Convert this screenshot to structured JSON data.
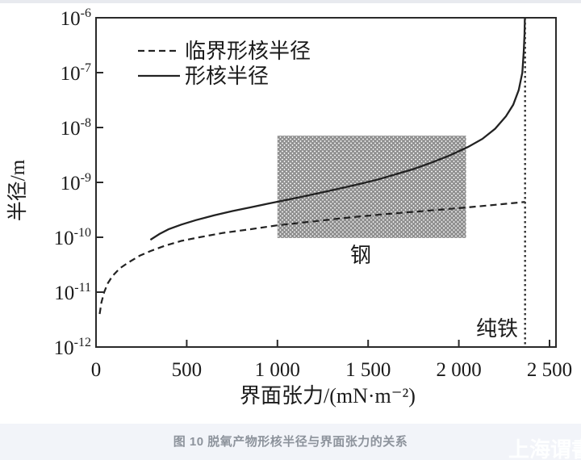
{
  "page": {
    "watermark": "上海谓書",
    "top_edge_color": "#e8eaef",
    "caption_bar_color": "#f2f4f9"
  },
  "chart_data": {
    "type": "line",
    "title": "图 10 脱氧产物形核半径与界面张力的关系",
    "xlabel": "界面张力/(mN·m⁻²)",
    "ylabel": "半径/m",
    "x_range": [
      0,
      2500
    ],
    "y_scale": "log",
    "ylim_exponents": [
      -6,
      -12
    ],
    "grid": false,
    "legend_position": "top-left-inside",
    "x_ticks": {
      "values": [
        0,
        500,
        1000,
        1500,
        2000,
        2500
      ],
      "labels": [
        "0",
        "500",
        "1 000",
        "1 500",
        "2 000",
        "2 500"
      ]
    },
    "y_tick_exponents": [
      -6,
      -7,
      -8,
      -9,
      -10,
      -11,
      -12
    ],
    "series": [
      {
        "name": "临界形核半径",
        "style": "dashed",
        "points": [
          [
            20,
            4e-12
          ],
          [
            30,
            6.5e-12
          ],
          [
            45,
            1e-11
          ],
          [
            65,
            1.45e-11
          ],
          [
            90,
            1.95e-11
          ],
          [
            130,
            2.7e-11
          ],
          [
            180,
            3.5e-11
          ],
          [
            240,
            4.6e-11
          ],
          [
            300,
            5.6e-11
          ],
          [
            380,
            7e-11
          ],
          [
            470,
            8.6e-11
          ],
          [
            570,
            1e-10
          ],
          [
            700,
            1.2e-10
          ],
          [
            850,
            1.4e-10
          ],
          [
            1000,
            1.65e-10
          ],
          [
            1200,
            1.95e-10
          ],
          [
            1400,
            2.3e-10
          ],
          [
            1600,
            2.65e-10
          ],
          [
            1800,
            3e-10
          ],
          [
            2000,
            3.4e-10
          ],
          [
            2200,
            3.9e-10
          ],
          [
            2365,
            4.4e-10
          ]
        ]
      },
      {
        "name": "形核半径",
        "style": "solid",
        "points": [
          [
            300,
            9e-11
          ],
          [
            350,
            1.15e-10
          ],
          [
            400,
            1.4e-10
          ],
          [
            470,
            1.7e-10
          ],
          [
            550,
            2.05e-10
          ],
          [
            650,
            2.5e-10
          ],
          [
            750,
            3e-10
          ],
          [
            850,
            3.5e-10
          ],
          [
            950,
            4.1e-10
          ],
          [
            1050,
            4.8e-10
          ],
          [
            1150,
            5.6e-10
          ],
          [
            1250,
            6.6e-10
          ],
          [
            1350,
            7.8e-10
          ],
          [
            1450,
            9.3e-10
          ],
          [
            1550,
            1.12e-09
          ],
          [
            1650,
            1.4e-09
          ],
          [
            1750,
            1.75e-09
          ],
          [
            1850,
            2.3e-09
          ],
          [
            1950,
            3.1e-09
          ],
          [
            2050,
            4.4e-09
          ],
          [
            2130,
            6.2e-09
          ],
          [
            2200,
            9.5e-09
          ],
          [
            2260,
            1.6e-08
          ],
          [
            2300,
            2.6e-08
          ],
          [
            2330,
            4.8e-08
          ],
          [
            2350,
            1e-07
          ],
          [
            2358,
            2.5e-07
          ],
          [
            2362,
            5e-07
          ],
          [
            2364,
            1e-06
          ]
        ]
      }
    ],
    "annotations": {
      "steel_region": {
        "label": "钢",
        "x_range": [
          1000,
          2040
        ],
        "y_range": [
          9.7e-11,
          7.1e-09
        ],
        "fill": "crosshatch"
      },
      "pure_iron_line": {
        "label": "纯铁",
        "x": 2365,
        "style": "dotted"
      }
    },
    "colors": {
      "line": "#222222",
      "axis": "#2a2a2a",
      "hatch": "#8f8f8f",
      "caption_text": "#8d939c"
    }
  }
}
